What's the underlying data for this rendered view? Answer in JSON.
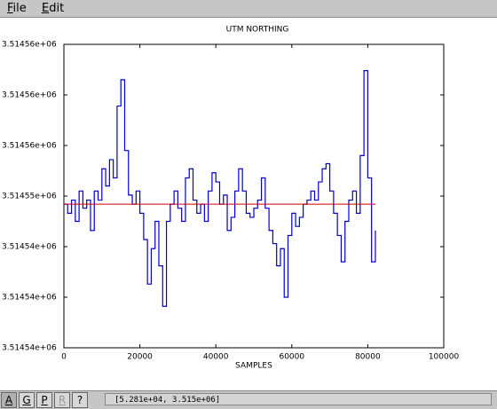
{
  "menu": [
    "File",
    "Edit"
  ],
  "toolbar": [
    "A",
    "G",
    "P",
    "R",
    "?"
  ],
  "status": "[5.281e+04, 3.515e+06]",
  "chart_data": {
    "type": "line",
    "title": "UTM NORTHING",
    "x_label": "SAMPLES",
    "x": [
      0,
      1000,
      2000,
      3000,
      4000,
      5000,
      6000,
      7000,
      8000,
      9000,
      10000,
      11000,
      12000,
      13000,
      14000,
      15000,
      16000,
      17000,
      18000,
      19000,
      20000,
      21000,
      22000,
      23000,
      24000,
      25000,
      26000,
      27000,
      28000,
      29000,
      30000,
      31000,
      32000,
      33000,
      34000,
      35000,
      36000,
      37000,
      38000,
      39000,
      40000,
      41000,
      42000,
      43000,
      44000,
      45000,
      46000,
      47000,
      48000,
      49000,
      50000,
      51000,
      52000,
      53000,
      54000,
      55000,
      56000,
      57000,
      58000,
      59000,
      60000,
      61000,
      62000,
      63000,
      64000,
      65000,
      66000,
      67000,
      68000,
      69000,
      70000,
      71000,
      72000,
      73000,
      74000,
      75000,
      76000,
      77000,
      78000,
      79000,
      80000,
      81000,
      82000
    ],
    "series": [
      {
        "color": "#0000cc",
        "values": [
          3514549.2,
          3514548.3,
          3514549.6,
          3514547.5,
          3514550.5,
          3514548.8,
          3514549.6,
          3514546.6,
          3514550.5,
          3514549.6,
          3514552.7,
          3514551.0,
          3514553.6,
          3514551.8,
          3514558.9,
          3514561.5,
          3514554.5,
          3514550.1,
          3514549.2,
          3514550.5,
          3514548.3,
          3514545.7,
          3514541.3,
          3514544.8,
          3514547.5,
          3514543.1,
          3514539.1,
          3514547.5,
          3514549.2,
          3514550.5,
          3514548.8,
          3514547.5,
          3514551.8,
          3514552.7,
          3514549.6,
          3514548.3,
          3514549.2,
          3514547.5,
          3514550.5,
          3514552.3,
          3514551.4,
          3514549.2,
          3514550.1,
          3514546.6,
          3514547.9,
          3514550.5,
          3514552.7,
          3514550.5,
          3514548.3,
          3514547.9,
          3514548.8,
          3514549.6,
          3514551.8,
          3514548.8,
          3514546.6,
          3514545.3,
          3514543.1,
          3514544.8,
          3514540.0,
          3514546.1,
          3514548.3,
          3514547.0,
          3514547.9,
          3514549.2,
          3514549.6,
          3514550.5,
          3514549.6,
          3514551.4,
          3514552.7,
          3514553.2,
          3514550.5,
          3514548.3,
          3514546.1,
          3514543.5,
          3514547.5,
          3514549.6,
          3514550.5,
          3514548.3,
          3514554.0,
          3514562.4,
          3514551.8,
          3514543.5,
          3514546.6
        ]
      }
    ],
    "mean_line": {
      "value": 3514549.2,
      "color": "#cc0000"
    },
    "xlim": [
      0,
      100000
    ],
    "xticks": [
      0,
      20000,
      40000,
      60000,
      80000,
      100000
    ],
    "ylim": [
      3514535,
      3514565
    ],
    "yticks": [
      {
        "value": 3514535,
        "label": "3.51454e+06"
      },
      {
        "value": 3514540,
        "label": "3.51454e+06"
      },
      {
        "value": 3514545,
        "label": "3.51454e+06"
      },
      {
        "value": 3514550,
        "label": "3.51455e+06"
      },
      {
        "value": 3514555,
        "label": "3.51456e+06"
      },
      {
        "value": 3514560,
        "label": "3.51456e+06"
      },
      {
        "value": 3514565,
        "label": "3.51456e+06"
      }
    ]
  }
}
